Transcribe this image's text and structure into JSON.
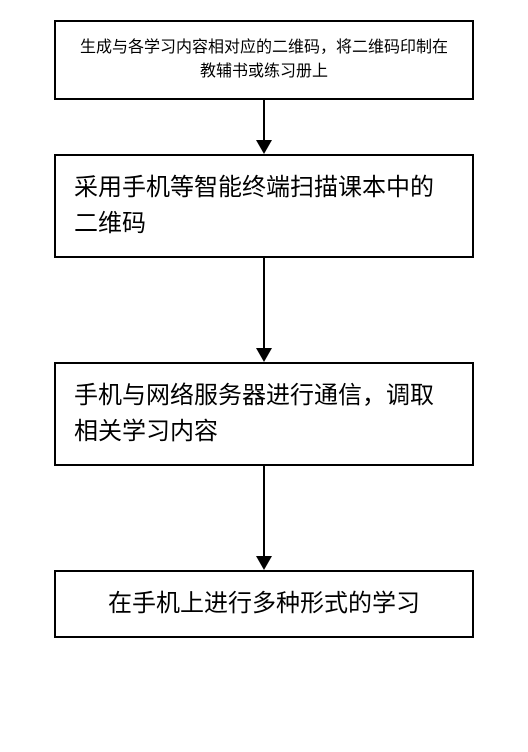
{
  "flowchart": {
    "type": "flowchart",
    "node_border_color": "#000000",
    "node_border_width": 2,
    "node_background": "#ffffff",
    "arrow_color": "#000000",
    "arrow_line_width": 2,
    "arrow_head_width": 16,
    "arrow_head_height": 14,
    "font_family": "SimSun",
    "font_size_pt": 18,
    "nodes": [
      {
        "id": "n1",
        "text": "生成与各学习内容相对应的二维码，将二维码印制在教辅书或练习册上",
        "align": "center",
        "arrow_length_after": 40
      },
      {
        "id": "n2",
        "text": "采用手机等智能终端扫描课本中的二维码",
        "align": "left",
        "arrow_length_after": 90
      },
      {
        "id": "n3",
        "text": "手机与网络服务器进行通信，调取相关学习内容",
        "align": "left",
        "arrow_length_after": 90
      },
      {
        "id": "n4",
        "text": "在手机上进行多种形式的学习",
        "align": "center",
        "arrow_length_after": 0
      }
    ],
    "edges": [
      {
        "from": "n1",
        "to": "n2"
      },
      {
        "from": "n2",
        "to": "n3"
      },
      {
        "from": "n3",
        "to": "n4"
      }
    ]
  }
}
